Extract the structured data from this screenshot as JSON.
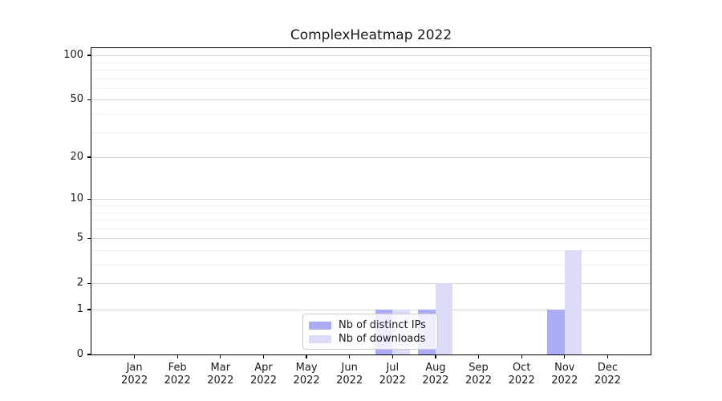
{
  "chart_data": {
    "type": "bar",
    "title": "ComplexHeatmap 2022",
    "categories": [
      "Jan",
      "Feb",
      "Mar",
      "Apr",
      "May",
      "Jun",
      "Jul",
      "Aug",
      "Sep",
      "Oct",
      "Nov",
      "Dec"
    ],
    "x_tick_second_line": "2022",
    "series": [
      {
        "name": "Nb of distinct IPs",
        "color": "#acacf4",
        "values": [
          0,
          0,
          0,
          0,
          0,
          0,
          1,
          1,
          0,
          0,
          1,
          0
        ]
      },
      {
        "name": "Nb of downloads",
        "color": "#dcdcf8",
        "values": [
          0,
          0,
          0,
          0,
          0,
          0,
          1,
          2,
          0,
          0,
          4,
          0
        ]
      }
    ],
    "xlabel": "",
    "ylabel": "",
    "y_axis": {
      "scale": "log1p",
      "ticks": [
        0,
        1,
        2,
        5,
        10,
        20,
        50,
        100
      ],
      "minor_gridlines": [
        3,
        4,
        6,
        7,
        8,
        9,
        30,
        40,
        60,
        70,
        80,
        90
      ],
      "range": [
        0,
        112
      ]
    },
    "grid": true,
    "legend_position": "lower-center-inside"
  },
  "colors": {
    "bar_distinct_ips": "#acacf4",
    "bar_downloads": "#dcdcf8",
    "major_grid": "#d7d7d7",
    "minor_grid": "#efefef",
    "axis_frame": "#000000",
    "text": "#1a1a1a",
    "legend_border": "#cccccc"
  }
}
